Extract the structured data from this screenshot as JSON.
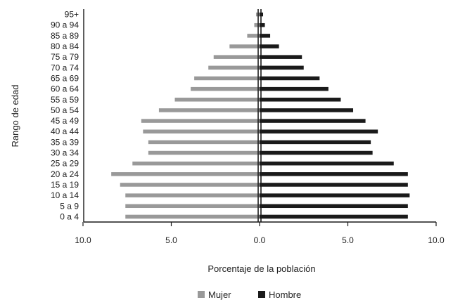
{
  "chart_data": {
    "type": "bar",
    "orientation": "horizontal",
    "layout": "population-pyramid",
    "categories": [
      "0 a 4",
      "5 a 9",
      "10 a 14",
      "15 a 19",
      "20 a 24",
      "25 a 29",
      "30 a 34",
      "35 a 39",
      "40 a 44",
      "45 a 49",
      "50 a 54",
      "55 a 59",
      "60 a 64",
      "65 a 69",
      "70 a 74",
      "75 a 79",
      "80 a 84",
      "85 a 89",
      "90 a 94",
      "95+"
    ],
    "series": [
      {
        "name": "Mujer",
        "side": "left",
        "color": "#999999",
        "values": [
          7.6,
          7.6,
          7.6,
          7.9,
          8.4,
          7.2,
          6.3,
          6.3,
          6.6,
          6.7,
          5.7,
          4.8,
          3.9,
          3.7,
          2.9,
          2.6,
          1.7,
          0.7,
          0.3,
          0.2
        ]
      },
      {
        "name": "Hombre",
        "side": "right",
        "color": "#1a1a1a",
        "values": [
          8.4,
          8.4,
          8.5,
          8.4,
          8.4,
          7.6,
          6.4,
          6.3,
          6.7,
          6.0,
          5.3,
          4.6,
          3.9,
          3.4,
          2.5,
          2.4,
          1.1,
          0.6,
          0.3,
          0.2
        ]
      }
    ],
    "xlabel": "Porcentaje de la población",
    "ylabel": "Rango de edad",
    "xlim": [
      -10,
      10
    ],
    "xticks": [
      -10,
      -5,
      0,
      5,
      10
    ],
    "xtick_labels": [
      "10.0",
      "5.0",
      "0.0",
      "5.0",
      "10.0"
    ],
    "legend_position": "bottom-center",
    "grid": false
  }
}
